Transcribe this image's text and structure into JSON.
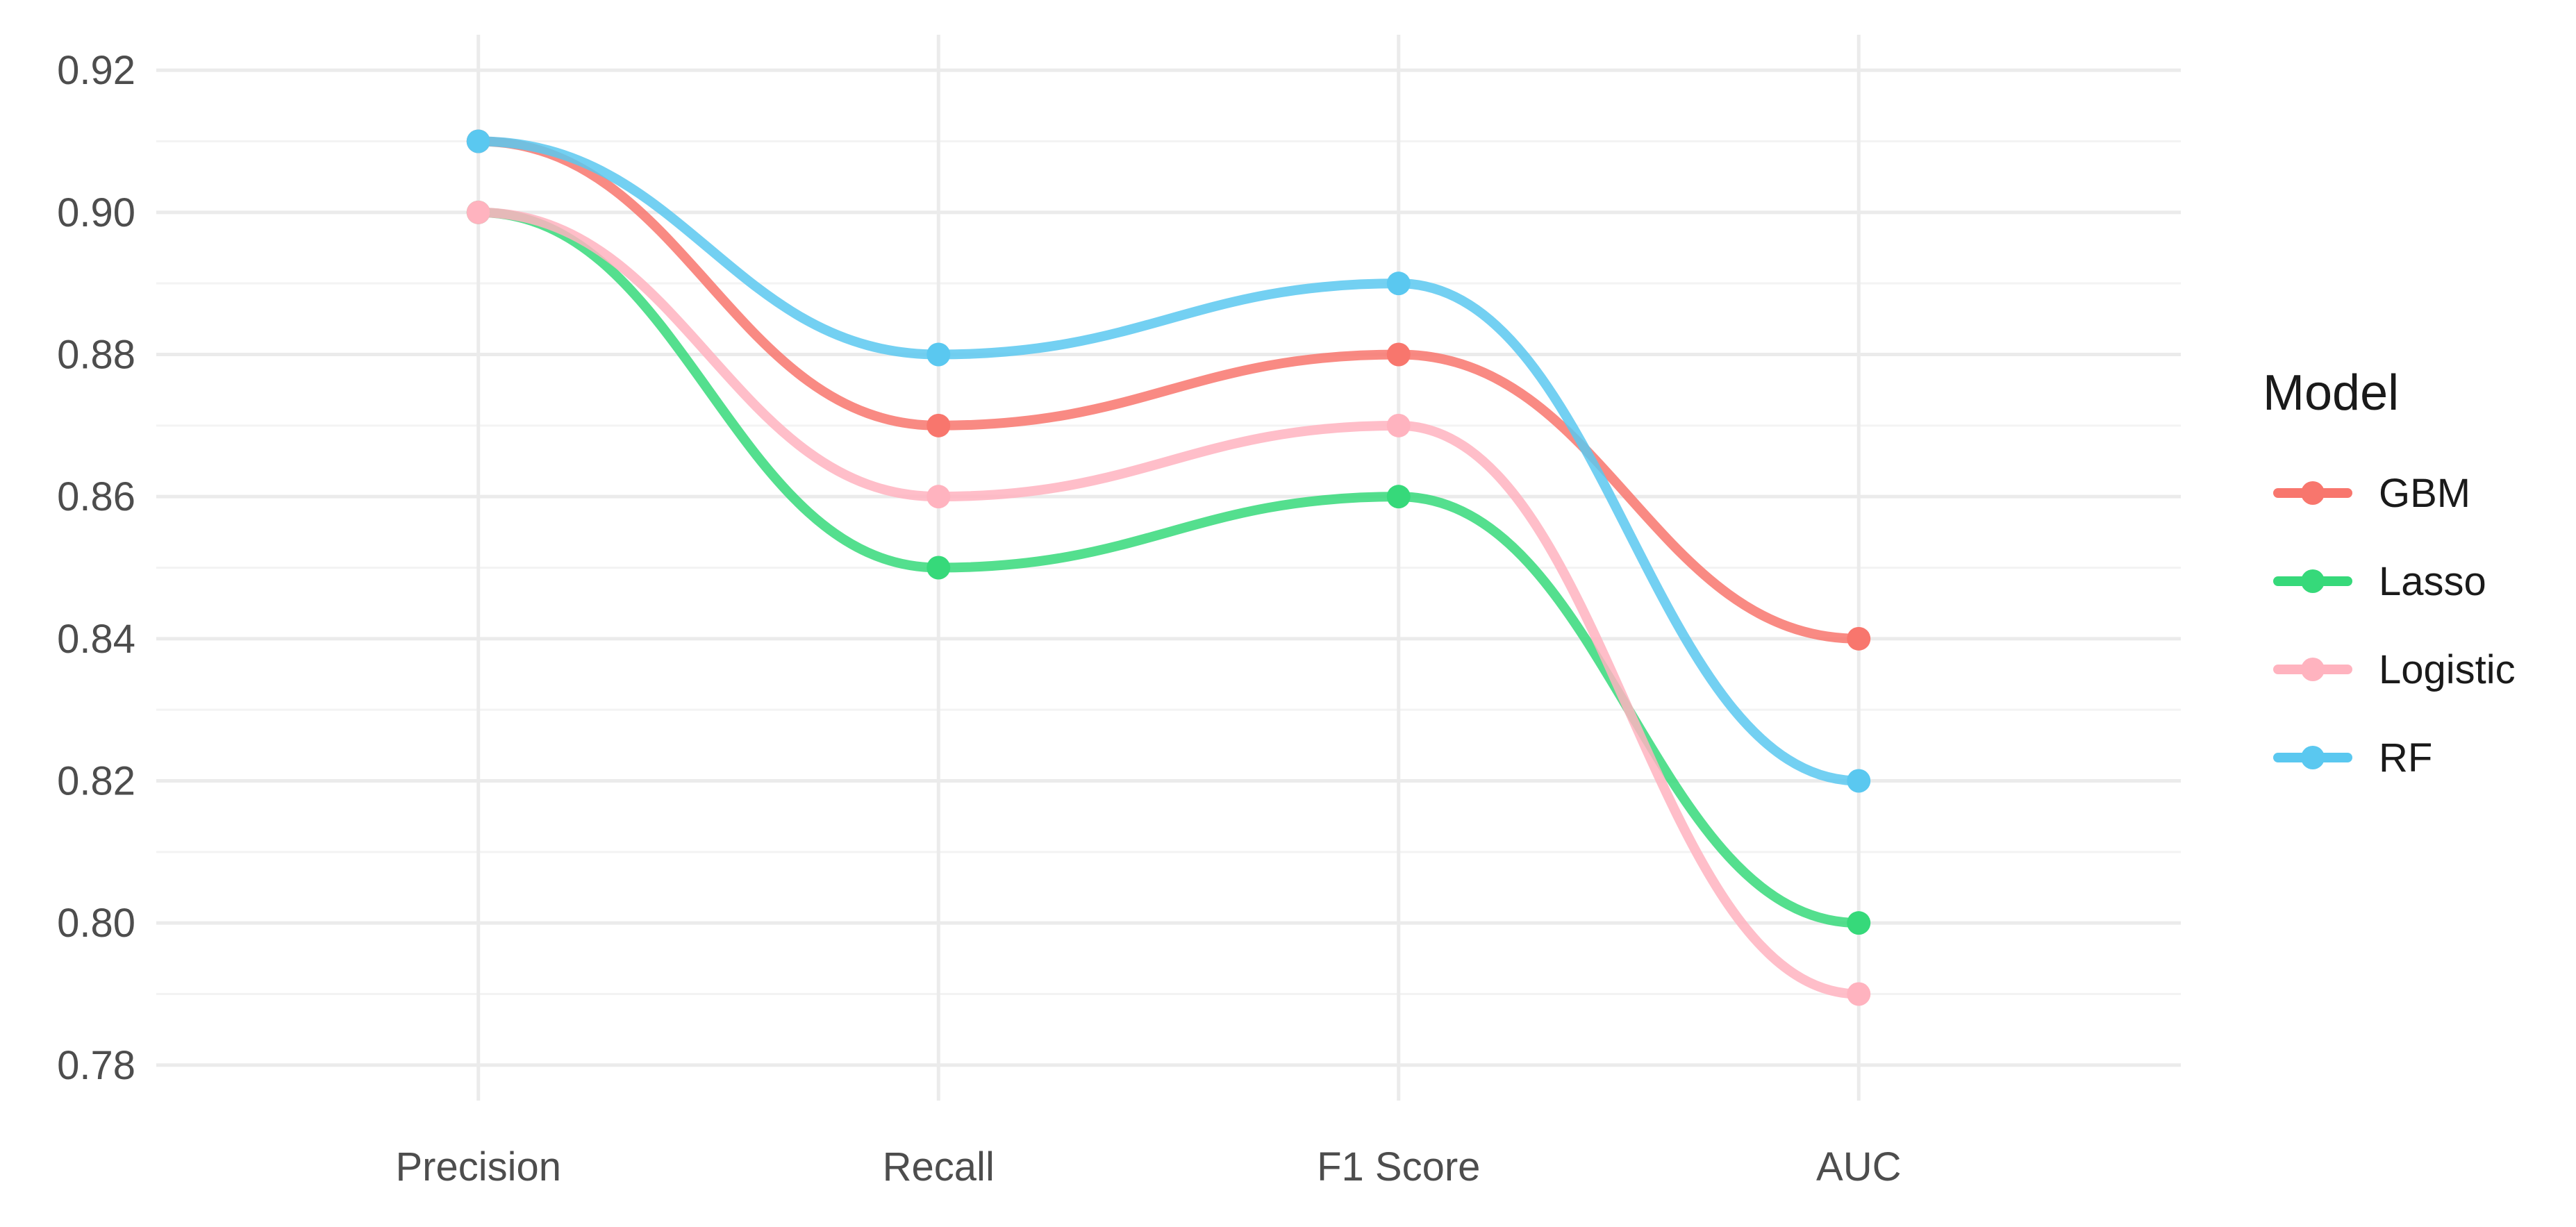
{
  "chart_data": {
    "type": "line",
    "categories": [
      "Precision",
      "Recall",
      "F1 Score",
      "AUC"
    ],
    "series": [
      {
        "name": "GBM",
        "color": "#F8766D",
        "values": [
          0.91,
          0.87,
          0.88,
          0.84
        ]
      },
      {
        "name": "Lasso",
        "color": "#36D97A",
        "values": [
          0.9,
          0.85,
          0.86,
          0.8
        ]
      },
      {
        "name": "Logistic",
        "color": "#FFB3BF",
        "values": [
          0.9,
          0.86,
          0.87,
          0.79
        ]
      },
      {
        "name": "RF",
        "color": "#5AC8F0",
        "values": [
          0.91,
          0.88,
          0.89,
          0.82
        ]
      }
    ],
    "ylim": [
      0.775,
      0.925
    ],
    "yticks": [
      "0.78",
      "0.80",
      "0.82",
      "0.84",
      "0.86",
      "0.88",
      "0.90",
      "0.92"
    ],
    "legend": {
      "title": "Model",
      "position": "right"
    },
    "grid": true,
    "smooth": true
  }
}
